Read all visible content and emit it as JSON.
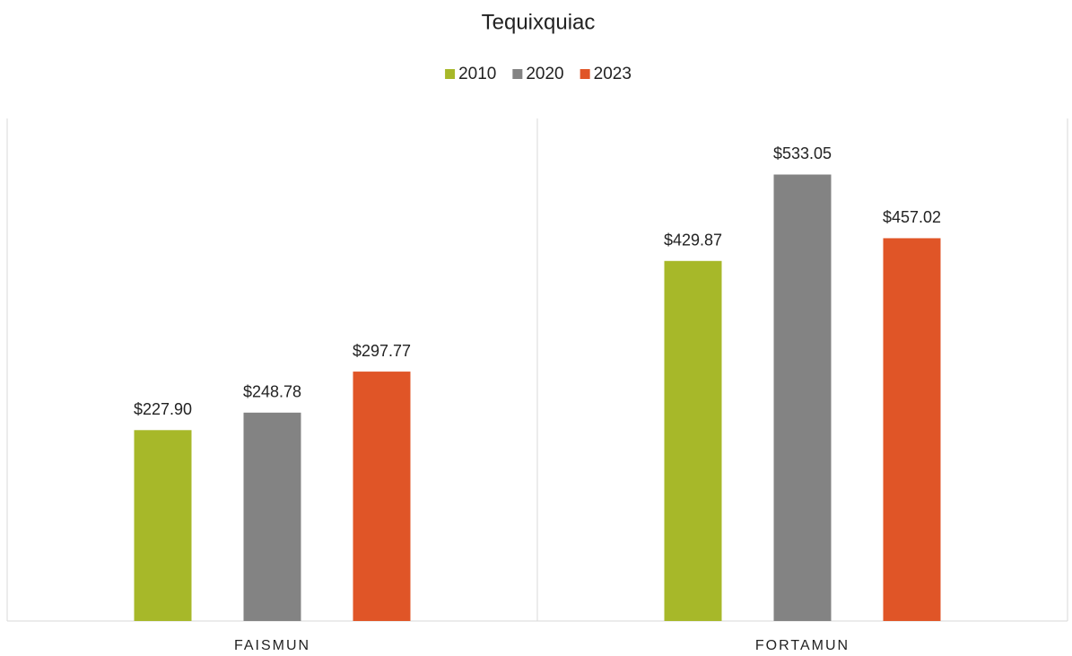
{
  "chart_data": {
    "type": "bar",
    "title": "Tequixquiac",
    "categories": [
      "FAISMUN",
      "FORTAMUN"
    ],
    "series": [
      {
        "name": "2010",
        "color": "#a7b829",
        "values": [
          227.9,
          429.87
        ],
        "value_labels": [
          "$227.90",
          "$429.87"
        ]
      },
      {
        "name": "2020",
        "color": "#838383",
        "values": [
          248.78,
          533.05
        ],
        "value_labels": [
          "$248.78",
          "$533.05"
        ]
      },
      {
        "name": "2023",
        "color": "#e05527",
        "values": [
          297.77,
          457.02
        ],
        "value_labels": [
          "$297.77",
          "$457.02"
        ]
      }
    ],
    "ylim": [
      0,
      600
    ],
    "legend": "top"
  }
}
